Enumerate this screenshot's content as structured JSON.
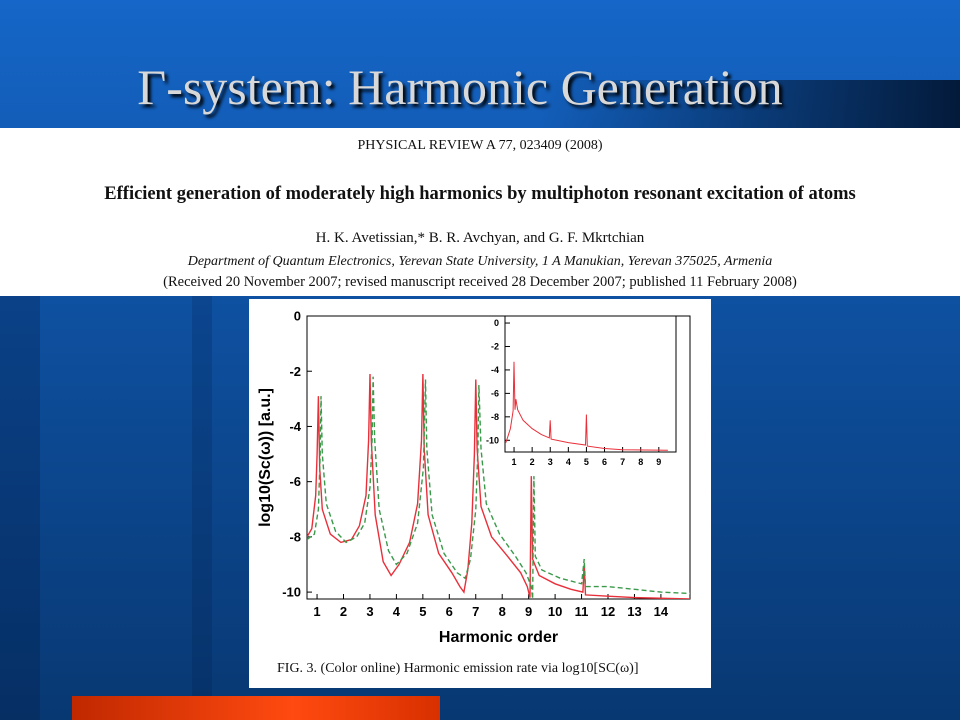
{
  "slide": {
    "title": "Γ-system: Harmonic Generation"
  },
  "paper": {
    "journal": "PHYSICAL REVIEW A 77, 023409 (2008)",
    "title": "Efficient generation of moderately high harmonics by multiphoton resonant excitation of atoms",
    "authors": "H. K. Avetissian,* B. R. Avchyan, and G. F. Mkrtchian",
    "affiliation": "Department of Quantum Electronics, Yerevan State University, 1 A Manukian, Yerevan 375025, Armenia",
    "received": "(Received 20 November 2007; revised manuscript received 28 December 2007; published 11 February 2008)"
  },
  "figure": {
    "caption": "FIG. 3. (Color online) Harmonic emission rate via log10[SC(ω)]"
  },
  "chart_data": [
    {
      "type": "line",
      "xlabel": "Harmonic order",
      "ylabel": "log10(Sc(ω)) [a.u.]",
      "xlim": [
        0.62,
        15.1
      ],
      "ylim": [
        -10.25,
        0
      ],
      "xticks": [
        1,
        2,
        3,
        4,
        5,
        6,
        7,
        8,
        9,
        10,
        11,
        12,
        13,
        14
      ],
      "yticks": [
        0,
        -2,
        -4,
        -6,
        -8,
        -10
      ],
      "series": [
        {
          "color": "#e8303a",
          "dash": false,
          "x": [
            0.62,
            0.8,
            0.95,
            1.0,
            1.05,
            1.1,
            1.2,
            1.5,
            1.9,
            2.3,
            2.6,
            2.85,
            2.95,
            3.0,
            3.05,
            3.2,
            3.5,
            3.8,
            4.1,
            4.5,
            4.8,
            4.95,
            5.0,
            5.05,
            5.2,
            5.6,
            6.1,
            6.4,
            6.55,
            6.7,
            6.85,
            6.95,
            7.0,
            7.05,
            7.2,
            7.6,
            8.2,
            8.7,
            8.95,
            9.05,
            9.1,
            9.15,
            9.4,
            10,
            10.6,
            11.05,
            11.1,
            11.15,
            12,
            13,
            15.1
          ],
          "values": [
            -8.0,
            -7.7,
            -6.5,
            -5,
            -2.9,
            -5.5,
            -7.0,
            -7.9,
            -8.2,
            -8.1,
            -7.6,
            -6.5,
            -4.5,
            -2.1,
            -4.5,
            -7.2,
            -8.9,
            -9.4,
            -9.0,
            -8.2,
            -6.8,
            -4.5,
            -2.1,
            -4.8,
            -7.2,
            -8.6,
            -9.3,
            -9.8,
            -10.0,
            -9.2,
            -7.5,
            -5,
            -2.3,
            -4.8,
            -6.9,
            -8.0,
            -8.7,
            -9.3,
            -9.8,
            -10.2,
            -5.8,
            -8.8,
            -9.4,
            -9.7,
            -9.9,
            -10.0,
            -9.0,
            -10.1,
            -10.15,
            -10.2,
            -10.25
          ]
        },
        {
          "color": "#3a9a4a",
          "dash": true,
          "x": [
            0.62,
            0.9,
            1.05,
            1.12,
            1.15,
            1.2,
            1.35,
            1.7,
            2.1,
            2.5,
            2.8,
            3.0,
            3.08,
            3.12,
            3.18,
            3.35,
            3.7,
            4.0,
            4.4,
            4.8,
            5.02,
            5.1,
            5.15,
            5.35,
            5.8,
            6.3,
            6.6,
            6.8,
            7.0,
            7.08,
            7.12,
            7.2,
            7.4,
            7.9,
            8.5,
            8.9,
            9.1,
            9.15,
            9.2,
            9.25,
            9.5,
            10.2,
            11.0,
            11.1,
            11.15,
            12,
            13,
            14,
            15.1
          ],
          "values": [
            -8.1,
            -7.9,
            -7,
            -5,
            -2.9,
            -5,
            -6.8,
            -7.8,
            -8.2,
            -8.0,
            -7.5,
            -6.2,
            -4.5,
            -2.2,
            -4.5,
            -7.0,
            -8.5,
            -9.0,
            -8.6,
            -7.5,
            -5.5,
            -2.3,
            -4.8,
            -7.2,
            -8.6,
            -9.3,
            -9.5,
            -8.8,
            -7.0,
            -4.8,
            -2.5,
            -4.8,
            -6.8,
            -7.9,
            -8.7,
            -9.3,
            -9.8,
            -10.25,
            -5.8,
            -8.7,
            -9.2,
            -9.5,
            -9.7,
            -8.8,
            -9.8,
            -9.8,
            -9.9,
            -10.0,
            -10.05
          ]
        }
      ]
    },
    {
      "type": "line",
      "xlim": [
        0.5,
        9.95
      ],
      "ylim": [
        -11,
        0.6
      ],
      "xticks": [
        1,
        2,
        3,
        4,
        5,
        6,
        7,
        8,
        9
      ],
      "yticks": [
        0,
        -2,
        -4,
        -6,
        -8,
        -10
      ],
      "series": [
        {
          "color": "#e8303a",
          "dash": false,
          "x": [
            0.55,
            0.8,
            0.95,
            1.0,
            1.05,
            1.1,
            1.2,
            1.5,
            2,
            2.5,
            2.95,
            3.0,
            3.05,
            4,
            4.95,
            5.0,
            5.05,
            6,
            7,
            9.5
          ],
          "values": [
            -10.2,
            -9,
            -7.5,
            -3.3,
            -7.4,
            -6.5,
            -7.4,
            -8.3,
            -9.0,
            -9.5,
            -9.8,
            -8.3,
            -9.9,
            -10.2,
            -10.4,
            -7.8,
            -10.5,
            -10.7,
            -10.8,
            -10.85
          ]
        }
      ]
    }
  ]
}
